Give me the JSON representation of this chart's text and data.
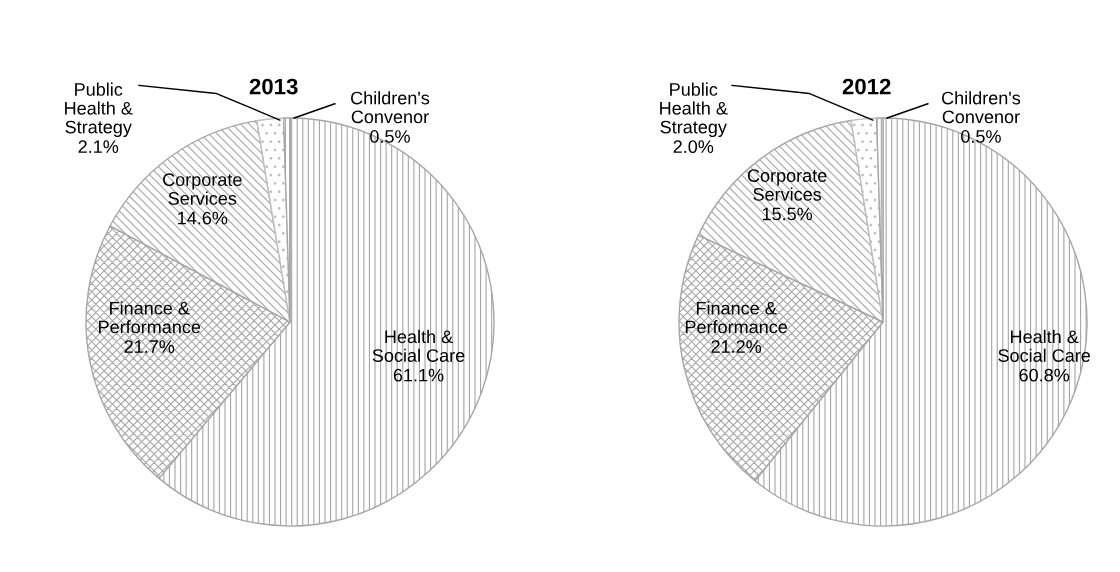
{
  "chart_data": [
    {
      "type": "pie",
      "title": "2013",
      "categories": [
        "Health &\nSocial Care",
        "Finance &\nPerformance",
        "Corporate\nServices",
        "Public\nHealth &\nStrategy",
        "Children's\nConvenor"
      ],
      "values": [
        61.1,
        21.7,
        14.6,
        2.1,
        0.5
      ],
      "value_labels": [
        "61.1%",
        "21.7%",
        "14.6%",
        "2.1%",
        "0.5%"
      ],
      "colors": [
        "#a6a6a6",
        "#a6a6a6",
        "#a6a6a6",
        "#bfbfbf",
        "#a6a6a6"
      ]
    },
    {
      "type": "pie",
      "title": "2012",
      "categories": [
        "Health &\nSocial Care",
        "Finance &\nPerformance",
        "Corporate\nServices",
        "Public\nHealth &\nStrategy",
        "Children's\nConvenor"
      ],
      "values": [
        60.8,
        21.2,
        15.5,
        2.0,
        0.5
      ],
      "value_labels": [
        "60.8%",
        "21.2%",
        "15.5%",
        "2.0%",
        "0.5%"
      ],
      "colors": [
        "#a6a6a6",
        "#a6a6a6",
        "#a6a6a6",
        "#bfbfbf",
        "#a6a6a6"
      ]
    }
  ]
}
